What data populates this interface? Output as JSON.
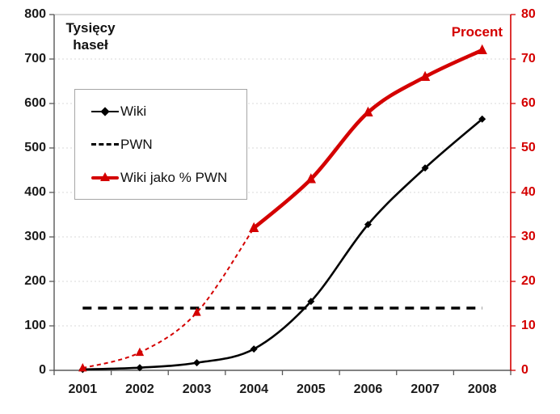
{
  "chart_data": {
    "type": "line",
    "axis_titles": {
      "left_line1": "Tysięcy",
      "left_line2": "haseł",
      "right": "Procent"
    },
    "x_categories": [
      "2001",
      "2002",
      "2003",
      "2004",
      "2005",
      "2006",
      "2007",
      "2008"
    ],
    "left_axis": {
      "min": 0,
      "max": 800,
      "step": 100
    },
    "right_axis": {
      "min": 0,
      "max": 80,
      "step": 10
    },
    "series": [
      {
        "name": "Wiki",
        "axis": "left",
        "color": "#000000",
        "style": "solid",
        "marker": "diamond",
        "values": [
          2,
          6,
          17,
          48,
          155,
          328,
          455,
          565
        ]
      },
      {
        "name": "PWN",
        "axis": "left",
        "color": "#000000",
        "style": "dashed",
        "marker": "none",
        "values": [
          140,
          140,
          140,
          140,
          140,
          140,
          140,
          140
        ]
      },
      {
        "name": "Wiki jako % PWN",
        "axis": "right",
        "color": "#d40000",
        "style": "dashed_then_solid",
        "solid_from_index": 3,
        "marker": "triangle",
        "values": [
          0.5,
          4,
          13,
          32,
          43,
          58,
          66,
          72
        ]
      }
    ],
    "legend": [
      "Wiki",
      "PWN",
      "Wiki jako % PWN"
    ],
    "legend_position": "upper-left",
    "grid": "horizontal-dotted",
    "colors": {
      "red": "#d40000",
      "grid": "#dadada",
      "axis": "#595959",
      "top_border": "#bfbfbf",
      "text": "#1a1a1a"
    }
  }
}
